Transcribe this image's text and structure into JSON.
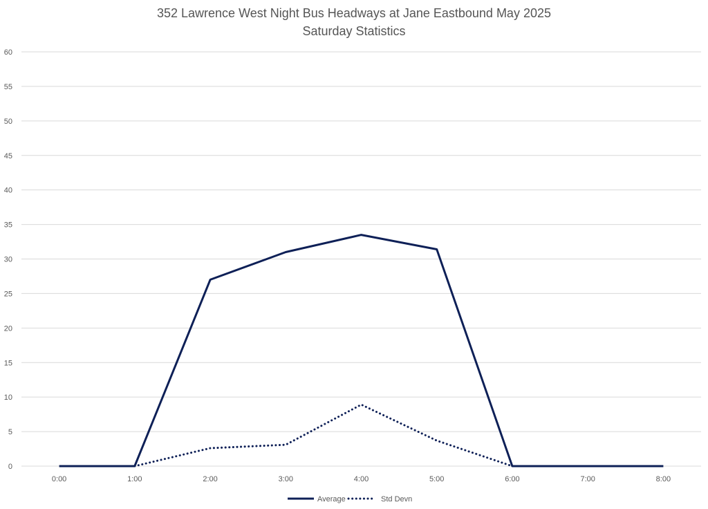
{
  "chart_data": {
    "type": "line",
    "title": "352 Lawrence West Night Bus Headways at Jane Eastbound May 2025",
    "subtitle": "Saturday Statistics",
    "xlabel": "",
    "ylabel": "",
    "categories": [
      "0:00",
      "1:00",
      "2:00",
      "3:00",
      "4:00",
      "5:00",
      "6:00",
      "7:00",
      "8:00"
    ],
    "ylim": [
      0,
      60
    ],
    "yticks": [
      0,
      5,
      10,
      15,
      20,
      25,
      30,
      35,
      40,
      45,
      50,
      55,
      60
    ],
    "grid": true,
    "legend_position": "bottom",
    "series": [
      {
        "name": "Average",
        "style": "solid",
        "color": "#0e2057",
        "values": [
          0,
          0,
          27,
          31,
          33.5,
          31.4,
          0,
          0,
          0
        ]
      },
      {
        "name": "Std Devn",
        "style": "dotted",
        "color": "#0e2057",
        "values": [
          null,
          0,
          2.6,
          3.1,
          8.9,
          3.7,
          0,
          null,
          null
        ]
      }
    ]
  }
}
